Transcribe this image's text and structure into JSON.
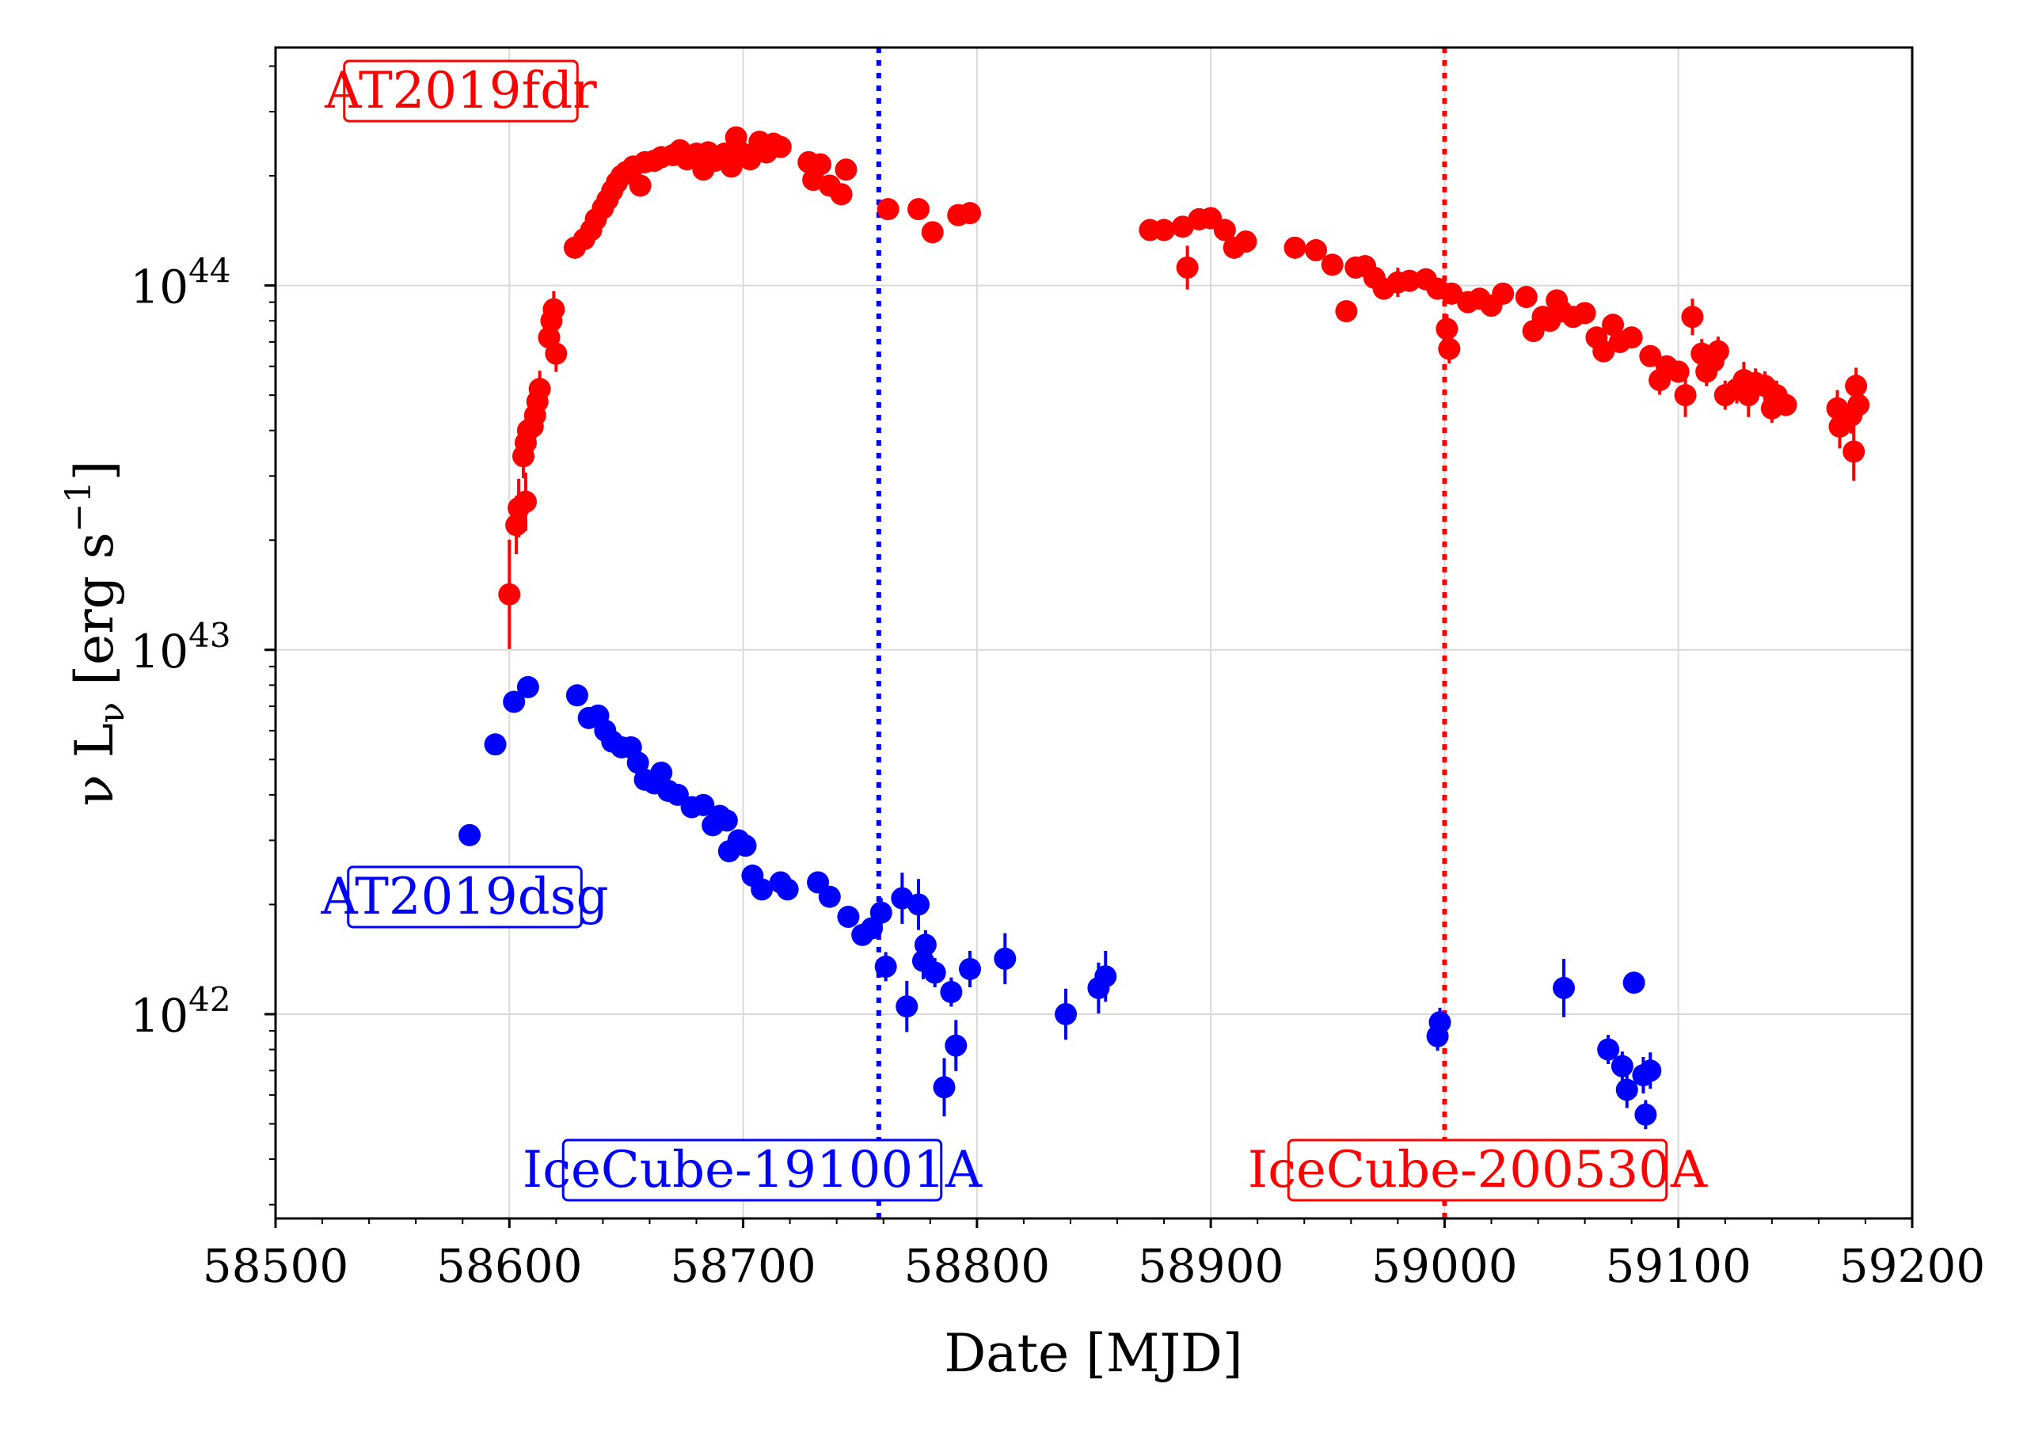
{
  "chart_data": {
    "type": "scatter",
    "xlabel": "Date [MJD]",
    "ylabel": {
      "prefix": "ν L",
      "sub": "ν",
      "unit_open": " [erg s",
      "sup": "−1",
      "unit_close": "]"
    },
    "xlim": [
      58500,
      59200
    ],
    "ylim": [
      2.75e+41,
      4.5e+44
    ],
    "yscale": "log",
    "grid": true,
    "x_ticks": [
      58500,
      58600,
      58700,
      58800,
      58900,
      59000,
      59100,
      59200
    ],
    "x_tick_labels": [
      "58500",
      "58600",
      "58700",
      "58800",
      "58900",
      "59000",
      "59100",
      "59200"
    ],
    "y_ticks": [
      {
        "value": 1e+42,
        "base": "10",
        "exp": "42"
      },
      {
        "value": 1e+43,
        "base": "10",
        "exp": "43"
      },
      {
        "value": 1e+44,
        "base": "10",
        "exp": "44"
      }
    ],
    "series": [
      {
        "name": "AT2019fdr",
        "color": "#ff0000",
        "label_position": "top-left",
        "points": [
          [
            58600,
            1.42e+43,
            0.15
          ],
          [
            58603,
            2.2e+43,
            0.08
          ],
          [
            58604,
            2.45e+43,
            0.08
          ],
          [
            58607,
            2.55e+43,
            0.08
          ],
          [
            58606,
            3.4e+43,
            0.06
          ],
          [
            58607,
            3.7e+43,
            0.06
          ],
          [
            58608,
            4e+43,
            0.06
          ],
          [
            58610,
            4.1e+43,
            0.06
          ],
          [
            58611,
            4.4e+43,
            0.06
          ],
          [
            58612,
            4.8e+43,
            0.06
          ],
          [
            58613,
            5.2e+43,
            0.05
          ],
          [
            58617,
            7.2e+43,
            0.05
          ],
          [
            58618,
            8e+43,
            0.05
          ],
          [
            58619,
            8.6e+43,
            0.05
          ],
          [
            58620,
            6.5e+43,
            0.05
          ],
          [
            58628,
            1.27e+44,
            0.03
          ],
          [
            58632,
            1.34e+44,
            0.03
          ],
          [
            58635,
            1.42e+44,
            0.03
          ],
          [
            58637,
            1.52e+44,
            0.03
          ],
          [
            58640,
            1.63e+44,
            0.03
          ],
          [
            58642,
            1.72e+44,
            0.03
          ],
          [
            58644,
            1.82e+44,
            0.03
          ],
          [
            58646,
            1.92e+44,
            0.03
          ],
          [
            58648,
            2e+44,
            0.03
          ],
          [
            58650,
            2.05e+44,
            0.03
          ],
          [
            58653,
            2.12e+44,
            0.03
          ],
          [
            58656,
            1.88e+44,
            0.03
          ],
          [
            58658,
            2.18e+44,
            0.03
          ],
          [
            58662,
            2.2e+44,
            0.03
          ],
          [
            58665,
            2.25e+44,
            0.03
          ],
          [
            58670,
            2.28e+44,
            0.03
          ],
          [
            58673,
            2.35e+44,
            0.03
          ],
          [
            58676,
            2.22e+44,
            0.03
          ],
          [
            58680,
            2.3e+44,
            0.03
          ],
          [
            58683,
            2.08e+44,
            0.03
          ],
          [
            58685,
            2.32e+44,
            0.03
          ],
          [
            58688,
            2.2e+44,
            0.03
          ],
          [
            58692,
            2.3e+44,
            0.03
          ],
          [
            58695,
            2.12e+44,
            0.03
          ],
          [
            58697,
            2.55e+44,
            0.03
          ],
          [
            58700,
            2.3e+44,
            0.03
          ],
          [
            58703,
            2.22e+44,
            0.03
          ],
          [
            58707,
            2.48e+44,
            0.03
          ],
          [
            58710,
            2.32e+44,
            0.03
          ],
          [
            58713,
            2.45e+44,
            0.03
          ],
          [
            58716,
            2.4e+44,
            0.03
          ],
          [
            58728,
            2.18e+44,
            0.03
          ],
          [
            58730,
            1.95e+44,
            0.03
          ],
          [
            58733,
            2.15e+44,
            0.03
          ],
          [
            58737,
            1.88e+44,
            0.03
          ],
          [
            58742,
            1.78e+44,
            0.03
          ],
          [
            58744,
            2.08e+44,
            0.03
          ],
          [
            58762,
            1.62e+44,
            0.03
          ],
          [
            58775,
            1.62e+44,
            0.03
          ],
          [
            58781,
            1.4e+44,
            0.03
          ],
          [
            58792,
            1.56e+44,
            0.03
          ],
          [
            58797,
            1.58e+44,
            0.03
          ],
          [
            58874,
            1.42e+44,
            0.03
          ],
          [
            58880,
            1.42e+44,
            0.03
          ],
          [
            58888,
            1.45e+44,
            0.03
          ],
          [
            58890,
            1.12e+44,
            0.06
          ],
          [
            58895,
            1.52e+44,
            0.03
          ],
          [
            58900,
            1.53e+44,
            0.03
          ],
          [
            58906,
            1.42e+44,
            0.03
          ],
          [
            58910,
            1.27e+44,
            0.03
          ],
          [
            58915,
            1.32e+44,
            0.03
          ],
          [
            58936,
            1.27e+44,
            0.03
          ],
          [
            58945,
            1.25e+44,
            0.03
          ],
          [
            58952,
            1.14e+44,
            0.03
          ],
          [
            58958,
            8.5e+43,
            0.03
          ],
          [
            58962,
            1.12e+44,
            0.03
          ],
          [
            58966,
            1.13e+44,
            0.03
          ],
          [
            58970,
            1.05e+44,
            0.03
          ],
          [
            58974,
            9.8e+43,
            0.03
          ],
          [
            58980,
            1.02e+44,
            0.04
          ],
          [
            58985,
            1.03e+44,
            0.03
          ],
          [
            58992,
            1.04e+44,
            0.03
          ],
          [
            58997,
            9.8e+43,
            0.03
          ],
          [
            59001,
            7.6e+43,
            0.04
          ],
          [
            59003,
            9.5e+43,
            0.03
          ],
          [
            59002,
            6.7e+43,
            0.04
          ],
          [
            59010,
            9e+43,
            0.03
          ],
          [
            59015,
            9.2e+43,
            0.03
          ],
          [
            59020,
            8.8e+43,
            0.03
          ],
          [
            59025,
            9.5e+43,
            0.03
          ],
          [
            59035,
            9.3e+43,
            0.03
          ],
          [
            59038,
            7.5e+43,
            0.03
          ],
          [
            59042,
            8.2e+43,
            0.03
          ],
          [
            59045,
            8e+43,
            0.03
          ],
          [
            59048,
            9.1e+43,
            0.03
          ],
          [
            59050,
            8.5e+43,
            0.03
          ],
          [
            59055,
            8.2e+43,
            0.03
          ],
          [
            59060,
            8.4e+43,
            0.03
          ],
          [
            59065,
            7.2e+43,
            0.03
          ],
          [
            59068,
            6.6e+43,
            0.03
          ],
          [
            59072,
            7.8e+43,
            0.03
          ],
          [
            59075,
            7e+43,
            0.03
          ],
          [
            59080,
            7.2e+43,
            0.03
          ],
          [
            59088,
            6.4e+43,
            0.03
          ],
          [
            59092,
            5.5e+43,
            0.04
          ],
          [
            59095,
            6e+43,
            0.03
          ],
          [
            59100,
            5.8e+43,
            0.03
          ],
          [
            59103,
            5e+43,
            0.06
          ],
          [
            59106,
            8.2e+43,
            0.05
          ],
          [
            59110,
            6.5e+43,
            0.04
          ],
          [
            59112,
            5.8e+43,
            0.04
          ],
          [
            59115,
            6.2e+43,
            0.04
          ],
          [
            59117,
            6.6e+43,
            0.04
          ],
          [
            59120,
            5e+43,
            0.04
          ],
          [
            59125,
            5.2e+43,
            0.04
          ],
          [
            59128,
            5.5e+43,
            0.05
          ],
          [
            59130,
            5e+43,
            0.06
          ],
          [
            59133,
            5.4e+43,
            0.04
          ],
          [
            59137,
            5.3e+43,
            0.04
          ],
          [
            59140,
            4.6e+43,
            0.04
          ],
          [
            59142,
            5e+43,
            0.04
          ],
          [
            59146,
            4.7e+43,
            0.03
          ],
          [
            59168,
            4.6e+43,
            0.05
          ],
          [
            59169,
            4.1e+43,
            0.06
          ],
          [
            59174,
            4.4e+43,
            0.05
          ],
          [
            59176,
            5.3e+43,
            0.05
          ],
          [
            59175,
            3.5e+43,
            0.08
          ],
          [
            59177,
            4.7e+43,
            0.04
          ]
        ]
      },
      {
        "name": "AT2019dsg",
        "color": "#0000ff",
        "label_position": "center-left",
        "points": [
          [
            58583,
            3.1e+42,
            0.02
          ],
          [
            58594,
            5.5e+42,
            0.02
          ],
          [
            58602,
            7.2e+42,
            0.02
          ],
          [
            58608,
            7.9e+42,
            0.02
          ],
          [
            58629,
            7.5e+42,
            0.02
          ],
          [
            58634,
            6.5e+42,
            0.02
          ],
          [
            58638,
            6.6e+42,
            0.02
          ],
          [
            58641,
            6e+42,
            0.02
          ],
          [
            58644,
            5.6e+42,
            0.02
          ],
          [
            58648,
            5.4e+42,
            0.02
          ],
          [
            58652,
            5.4e+42,
            0.02
          ],
          [
            58655,
            4.9e+42,
            0.02
          ],
          [
            58658,
            4.4e+42,
            0.02
          ],
          [
            58662,
            4.3e+42,
            0.02
          ],
          [
            58665,
            4.6e+42,
            0.02
          ],
          [
            58668,
            4.1e+42,
            0.02
          ],
          [
            58672,
            4e+42,
            0.02
          ],
          [
            58678,
            3.7e+42,
            0.02
          ],
          [
            58683,
            3.75e+42,
            0.02
          ],
          [
            58687,
            3.3e+42,
            0.02
          ],
          [
            58690,
            3.5e+42,
            0.02
          ],
          [
            58693,
            3.4e+42,
            0.02
          ],
          [
            58694,
            2.8e+42,
            0.02
          ],
          [
            58698,
            3e+42,
            0.02
          ],
          [
            58701,
            2.9e+42,
            0.02
          ],
          [
            58704,
            2.4e+42,
            0.02
          ],
          [
            58708,
            2.2e+42,
            0.02
          ],
          [
            58716,
            2.3e+42,
            0.02
          ],
          [
            58719,
            2.2e+42,
            0.02
          ],
          [
            58732,
            2.3e+42,
            0.02
          ],
          [
            58737,
            2.1e+42,
            0.02
          ],
          [
            58745,
            1.85e+42,
            0.02
          ],
          [
            58751,
            1.65e+42,
            0.02
          ],
          [
            58755,
            1.72e+42,
            0.02
          ],
          [
            58759,
            1.9e+42,
            0.04
          ],
          [
            58761,
            1.35e+42,
            0.04
          ],
          [
            58768,
            2.08e+42,
            0.07
          ],
          [
            58770,
            1.05e+42,
            0.07
          ],
          [
            58775,
            2e+42,
            0.07
          ],
          [
            58777,
            1.4e+42,
            0.05
          ],
          [
            58778,
            1.55e+42,
            0.04
          ],
          [
            58782,
            1.3e+42,
            0.04
          ],
          [
            58786,
            6.3e+41,
            0.08
          ],
          [
            58789,
            1.15e+42,
            0.04
          ],
          [
            58791,
            8.2e+41,
            0.07
          ],
          [
            58797,
            1.33e+42,
            0.05
          ],
          [
            58812,
            1.42e+42,
            0.07
          ],
          [
            58838,
            1e+42,
            0.07
          ],
          [
            58852,
            1.18e+42,
            0.07
          ],
          [
            58855,
            1.27e+42,
            0.07
          ],
          [
            58997,
            8.7e+41,
            0.04
          ],
          [
            58998,
            9.5e+41,
            0.04
          ],
          [
            59051,
            1.18e+42,
            0.08
          ],
          [
            59070,
            8e+41,
            0.04
          ],
          [
            59076,
            7.2e+41,
            0.04
          ],
          [
            59078,
            6.2e+41,
            0.05
          ],
          [
            59081,
            1.22e+42,
            0.03
          ],
          [
            59085,
            6.8e+41,
            0.05
          ],
          [
            59086,
            5.3e+41,
            0.04
          ],
          [
            59088,
            7e+41,
            0.05
          ]
        ]
      }
    ],
    "vlines": [
      {
        "label": "IceCube-191001A",
        "x": 58758,
        "color": "#0000ff"
      },
      {
        "label": "IceCube-200530A",
        "x": 59000,
        "color": "#ff0000"
      }
    ]
  }
}
